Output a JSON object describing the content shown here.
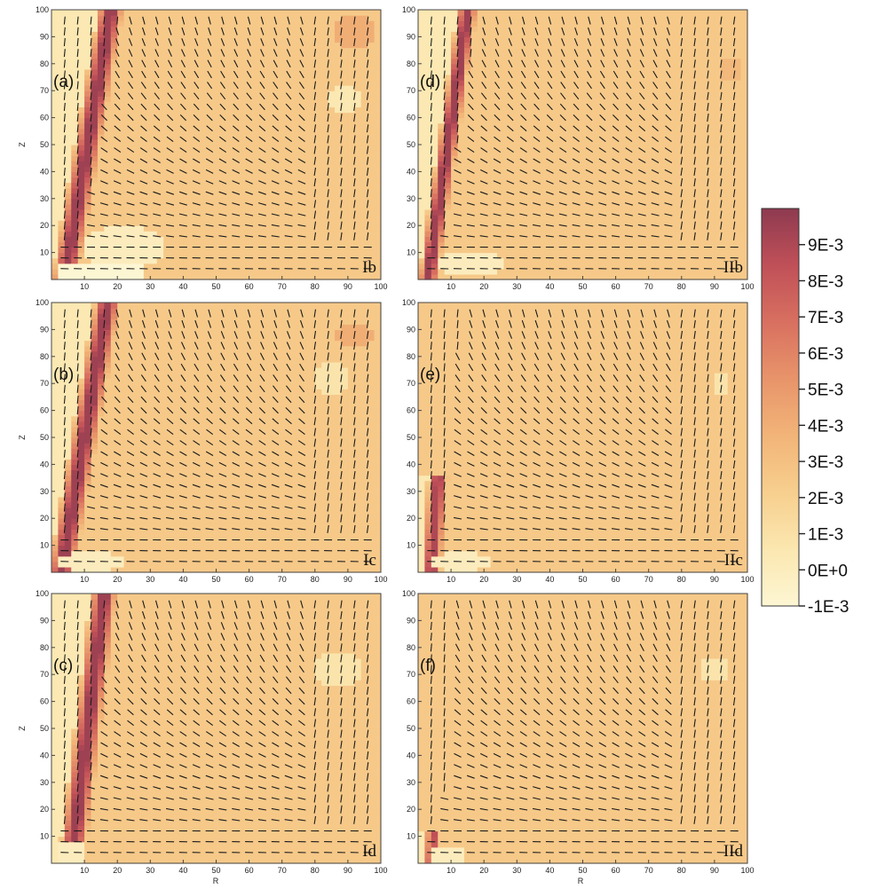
{
  "chart_data": {
    "type": "heatmap",
    "x_axis": {
      "label": "R",
      "range": [
        0,
        100
      ],
      "ticks": [
        "10",
        "20",
        "30",
        "40",
        "50",
        "60",
        "70",
        "80",
        "90",
        "100"
      ]
    },
    "y_axis": {
      "label": "Z",
      "range": [
        0,
        100
      ],
      "ticks": [
        "10",
        "20",
        "30",
        "40",
        "50",
        "60",
        "70",
        "80",
        "90",
        "100"
      ]
    },
    "overlay": "velocity vectors (arrows)",
    "colorbar": {
      "min": -0.001,
      "max": 0.01,
      "tick_values": [
        0.009,
        0.008,
        0.007,
        0.006,
        0.005,
        0.004,
        0.003,
        0.002,
        0.001,
        0.0,
        -0.001
      ],
      "tick_labels": [
        "9E-3",
        "8E-3",
        "7E-3",
        "6E-3",
        "5E-3",
        "4E-3",
        "3E-3",
        "2E-3",
        "1E-3",
        "0E+0",
        "-1E-3"
      ],
      "colors": [
        "#fdf6d3",
        "#fbe7b0",
        "#f7cf8e",
        "#f2b478",
        "#e8946a",
        "#d87060",
        "#c05058",
        "#8e3a50"
      ]
    },
    "panels": [
      {
        "label": "(a)",
        "case": "Ib",
        "background": 0.0025,
        "plume": {
          "r_base": 4,
          "r_top": 18,
          "width": 4,
          "max": 0.0095,
          "z_top": 100
        },
        "bubbles": [
          {
            "r": 22,
            "z": 12,
            "rr": 12,
            "rz": 8,
            "v": 0.0
          },
          {
            "r": 15,
            "z": 3,
            "rr": 14,
            "rz": 4,
            "v": -0.001
          }
        ],
        "spots": [
          {
            "r": 89,
            "z": 67,
            "rr": 5,
            "rz": 6,
            "v": 0.0005
          },
          {
            "r": 92,
            "z": 92,
            "rr": 6,
            "rz": 6,
            "v": 0.004
          }
        ]
      },
      {
        "label": "(d)",
        "case": "IIb",
        "background": 0.0025,
        "plume": {
          "r_base": 3,
          "r_top": 15,
          "width": 3,
          "max": 0.0095,
          "z_top": 100
        },
        "bubbles": [
          {
            "r": 16,
            "z": 6,
            "rr": 10,
            "rz": 5,
            "v": 0.0
          }
        ],
        "spots": [
          {
            "r": 95,
            "z": 78,
            "rr": 3,
            "rz": 5,
            "v": 0.0035
          }
        ]
      },
      {
        "label": "(b)",
        "case": "Ic",
        "background": 0.0025,
        "plume": {
          "r_base": 3,
          "r_top": 17,
          "width": 4,
          "max": 0.0095,
          "z_top": 100
        },
        "bubbles": [
          {
            "r": 12,
            "z": 4,
            "rr": 10,
            "rz": 4,
            "v": 0.0
          }
        ],
        "spots": [
          {
            "r": 85,
            "z": 72,
            "rr": 6,
            "rz": 6,
            "v": 0.0008
          },
          {
            "r": 92,
            "z": 88,
            "rr": 6,
            "rz": 5,
            "v": 0.004
          }
        ]
      },
      {
        "label": "(e)",
        "case": "IIc",
        "background": 0.0025,
        "plume": {
          "r_base": 4,
          "r_top": 10,
          "width": 3,
          "max": 0.009,
          "z_top": 35
        },
        "bubbles": [
          {
            "r": 13,
            "z": 4,
            "rr": 9,
            "rz": 4,
            "v": 0.0
          }
        ],
        "spots": [
          {
            "r": 92,
            "z": 70,
            "rr": 3,
            "rz": 4,
            "v": 0.0008
          }
        ]
      },
      {
        "label": "(c)",
        "case": "Id",
        "background": 0.0025,
        "plume": {
          "r_base": 6,
          "r_top": 16,
          "width": 4,
          "max": 0.0095,
          "z_top": 100
        },
        "bubbles": [
          {
            "r": 6,
            "z": 4,
            "rr": 5,
            "rz": 4,
            "v": 0.0
          }
        ],
        "spots": [
          {
            "r": 87,
            "z": 72,
            "rr": 7,
            "rz": 7,
            "v": 0.0008
          }
        ]
      },
      {
        "label": "(f)",
        "case": "IId",
        "background": 0.0025,
        "plume": {
          "r_base": 4,
          "r_top": 8,
          "width": 2,
          "max": 0.0085,
          "z_top": 12
        },
        "bubbles": [
          {
            "r": 9,
            "z": 3,
            "rr": 6,
            "rz": 3,
            "v": 0.0
          }
        ],
        "spots": [
          {
            "r": 90,
            "z": 72,
            "rr": 5,
            "rz": 4,
            "v": 0.0008
          }
        ]
      }
    ]
  }
}
